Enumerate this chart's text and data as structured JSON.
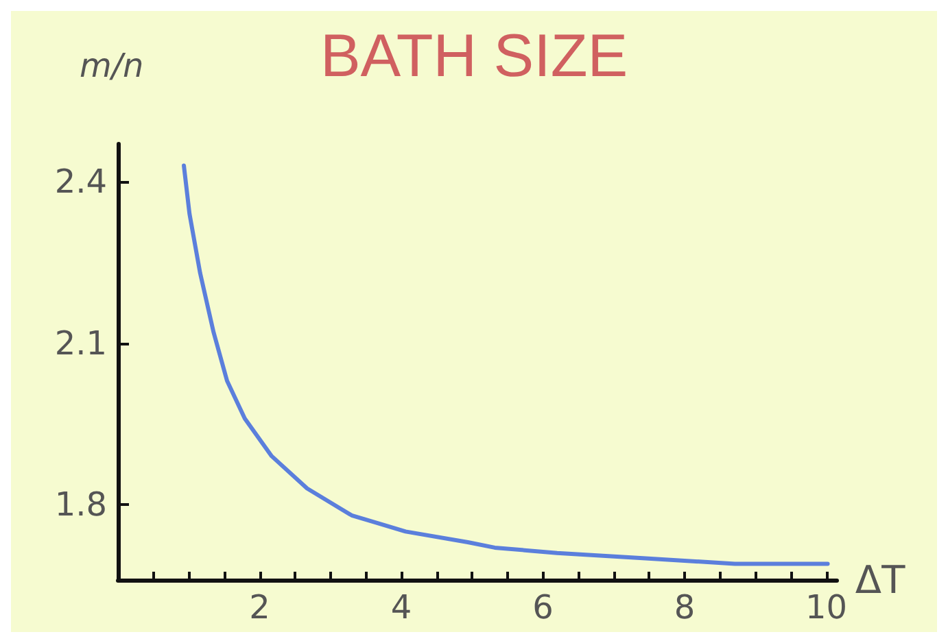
{
  "chart_data": {
    "type": "line",
    "title": "BATH SIZE",
    "ylabel": "m/n",
    "xlabel": "ΔT",
    "xlim": [
      0,
      10.15
    ],
    "ylim": [
      1.66,
      2.47
    ],
    "xticks": [
      {
        "value": 0.5,
        "label": null
      },
      {
        "value": 1,
        "label": null
      },
      {
        "value": 1.5,
        "label": null
      },
      2,
      {
        "value": 2.5,
        "label": null
      },
      {
        "value": 3,
        "label": null
      },
      {
        "value": 3.5,
        "label": null
      },
      4,
      {
        "value": 4.5,
        "label": null
      },
      {
        "value": 5,
        "label": null
      },
      {
        "value": 5.5,
        "label": null
      },
      6,
      {
        "value": 6.5,
        "label": null
      },
      {
        "value": 7,
        "label": null
      },
      {
        "value": 7.5,
        "label": null
      },
      8,
      {
        "value": 8.5,
        "label": null
      },
      {
        "value": 9,
        "label": null
      },
      {
        "value": 9.5,
        "label": null
      },
      10
    ],
    "yticks": [
      1.8,
      2.1,
      2.4
    ],
    "grid": false,
    "marker": "none",
    "line_style": "solid",
    "series": [
      {
        "color": "#5b7fdc",
        "x": [
          0.93,
          1.01,
          1.16,
          1.35,
          1.54,
          1.79,
          2.17,
          2.67,
          3.3,
          4.06,
          4.94,
          5.32,
          6.2,
          7.45,
          8.71,
          10.02
        ],
        "values": [
          2.43,
          2.34,
          2.23,
          2.12,
          2.03,
          1.96,
          1.89,
          1.83,
          1.78,
          1.75,
          1.73,
          1.72,
          1.71,
          1.7,
          1.69,
          1.69
        ]
      }
    ]
  }
}
